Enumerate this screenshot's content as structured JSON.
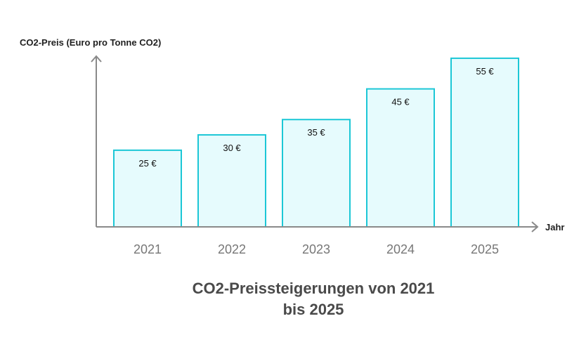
{
  "chart_data": {
    "type": "bar",
    "title_lines": [
      "CO2-Preissteigerungen von 2021",
      "bis 2025"
    ],
    "xlabel": "Jahr",
    "ylabel": "CO2-Preis (Euro pro Tonne CO2)",
    "categories": [
      "2021",
      "2022",
      "2023",
      "2024",
      "2025"
    ],
    "values": [
      25,
      30,
      35,
      45,
      55
    ],
    "value_labels": [
      "25 €",
      "30 €",
      "35 €",
      "45 €",
      "55 €"
    ],
    "ylim": [
      0,
      55
    ],
    "grid": false,
    "colors": {
      "bar_fill": "#e6fbfd",
      "bar_stroke": "#1cc7d6",
      "axis": "#8a8a8a"
    }
  }
}
